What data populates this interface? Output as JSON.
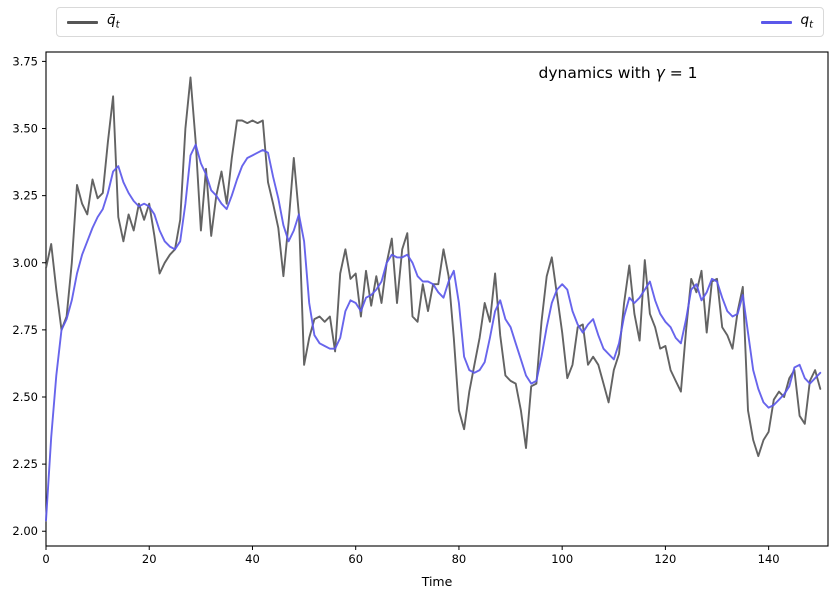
{
  "figure": {
    "background": "#ffffff"
  },
  "chart_data": {
    "type": "line",
    "annotation": "dynamics with γ = 1",
    "xlabel": "Time",
    "ylabel": "",
    "grid": false,
    "xlim": [
      0,
      151.5
    ],
    "ylim": [
      1.945,
      3.785
    ],
    "xticks": {
      "values": [
        0,
        20,
        40,
        60,
        80,
        100,
        120,
        140
      ],
      "labels": [
        "0",
        "20",
        "40",
        "60",
        "80",
        "100",
        "120",
        "140"
      ]
    },
    "yticks": {
      "values": [
        2.0,
        2.25,
        2.5,
        2.75,
        3.0,
        3.25,
        3.5,
        3.75
      ],
      "labels": [
        "2.00",
        "2.25",
        "2.50",
        "2.75",
        "3.00",
        "3.25",
        "3.50",
        "3.75"
      ]
    },
    "legend": {
      "position": "top-expanded",
      "items": [
        {
          "base": "q̄",
          "sub": "t"
        },
        {
          "base": "q",
          "sub": "t"
        }
      ]
    },
    "x": [
      0,
      1,
      2,
      3,
      4,
      5,
      6,
      7,
      8,
      9,
      10,
      11,
      12,
      13,
      14,
      15,
      16,
      17,
      18,
      19,
      20,
      21,
      22,
      23,
      24,
      25,
      26,
      27,
      28,
      29,
      30,
      31,
      32,
      33,
      34,
      35,
      36,
      37,
      38,
      39,
      40,
      41,
      42,
      43,
      44,
      45,
      46,
      47,
      48,
      49,
      50,
      51,
      52,
      53,
      54,
      55,
      56,
      57,
      58,
      59,
      60,
      61,
      62,
      63,
      64,
      65,
      66,
      67,
      68,
      69,
      70,
      71,
      72,
      73,
      74,
      75,
      76,
      77,
      78,
      79,
      80,
      81,
      82,
      83,
      84,
      85,
      86,
      87,
      88,
      89,
      90,
      91,
      92,
      93,
      94,
      95,
      96,
      97,
      98,
      99,
      100,
      101,
      102,
      103,
      104,
      105,
      106,
      107,
      108,
      109,
      110,
      111,
      112,
      113,
      114,
      115,
      116,
      117,
      118,
      119,
      120,
      121,
      122,
      123,
      124,
      125,
      126,
      127,
      128,
      129,
      130,
      131,
      132,
      133,
      134,
      135,
      136,
      137,
      138,
      139,
      140,
      141,
      142,
      143,
      144,
      145,
      146,
      147,
      148,
      149,
      150
    ],
    "series": [
      {
        "name": "q̄_t",
        "color": "#565656",
        "values": [
          2.98,
          3.07,
          2.9,
          2.75,
          2.8,
          3.0,
          3.29,
          3.22,
          3.18,
          3.31,
          3.24,
          3.26,
          3.45,
          3.62,
          3.17,
          3.08,
          3.18,
          3.12,
          3.22,
          3.16,
          3.22,
          3.1,
          2.96,
          3.0,
          3.03,
          3.05,
          3.16,
          3.5,
          3.69,
          3.45,
          3.12,
          3.35,
          3.1,
          3.25,
          3.34,
          3.22,
          3.39,
          3.53,
          3.53,
          3.52,
          3.53,
          3.52,
          3.53,
          3.3,
          3.22,
          3.13,
          2.95,
          3.15,
          3.39,
          3.18,
          2.62,
          2.72,
          2.79,
          2.8,
          2.78,
          2.8,
          2.67,
          2.96,
          3.05,
          2.94,
          2.96,
          2.8,
          2.97,
          2.84,
          2.95,
          2.85,
          3.0,
          3.09,
          2.85,
          3.05,
          3.11,
          2.8,
          2.78,
          2.92,
          2.82,
          2.92,
          2.92,
          3.05,
          2.95,
          2.72,
          2.45,
          2.38,
          2.52,
          2.62,
          2.72,
          2.85,
          2.78,
          2.96,
          2.73,
          2.58,
          2.56,
          2.55,
          2.45,
          2.31,
          2.54,
          2.55,
          2.78,
          2.95,
          3.02,
          2.88,
          2.74,
          2.57,
          2.62,
          2.76,
          2.77,
          2.62,
          2.65,
          2.62,
          2.55,
          2.48,
          2.6,
          2.66,
          2.85,
          2.99,
          2.81,
          2.71,
          3.01,
          2.81,
          2.76,
          2.68,
          2.69,
          2.6,
          2.56,
          2.52,
          2.75,
          2.94,
          2.89,
          2.97,
          2.74,
          2.93,
          2.94,
          2.76,
          2.73,
          2.68,
          2.82,
          2.91,
          2.45,
          2.34,
          2.28,
          2.34,
          2.37,
          2.49,
          2.52,
          2.5,
          2.57,
          2.6,
          2.43,
          2.4,
          2.56,
          2.6,
          2.53
        ]
      },
      {
        "name": "q_t",
        "color": "#5b58ea",
        "values": [
          2.04,
          2.35,
          2.58,
          2.75,
          2.79,
          2.86,
          2.96,
          3.03,
          3.08,
          3.13,
          3.17,
          3.2,
          3.26,
          3.34,
          3.36,
          3.3,
          3.26,
          3.23,
          3.21,
          3.22,
          3.21,
          3.18,
          3.12,
          3.08,
          3.06,
          3.05,
          3.08,
          3.22,
          3.4,
          3.44,
          3.37,
          3.33,
          3.27,
          3.25,
          3.22,
          3.2,
          3.25,
          3.31,
          3.36,
          3.39,
          3.4,
          3.41,
          3.42,
          3.41,
          3.32,
          3.24,
          3.14,
          3.08,
          3.12,
          3.18,
          3.08,
          2.85,
          2.73,
          2.7,
          2.69,
          2.68,
          2.68,
          2.72,
          2.82,
          2.86,
          2.85,
          2.82,
          2.87,
          2.88,
          2.9,
          2.93,
          3.0,
          3.03,
          3.02,
          3.02,
          3.03,
          3.0,
          2.95,
          2.93,
          2.93,
          2.92,
          2.89,
          2.87,
          2.93,
          2.97,
          2.85,
          2.65,
          2.6,
          2.59,
          2.6,
          2.63,
          2.72,
          2.82,
          2.86,
          2.79,
          2.76,
          2.7,
          2.64,
          2.58,
          2.55,
          2.56,
          2.65,
          2.76,
          2.85,
          2.9,
          2.92,
          2.9,
          2.82,
          2.77,
          2.74,
          2.77,
          2.79,
          2.73,
          2.68,
          2.66,
          2.64,
          2.7,
          2.8,
          2.87,
          2.85,
          2.87,
          2.9,
          2.93,
          2.86,
          2.81,
          2.78,
          2.76,
          2.72,
          2.7,
          2.79,
          2.9,
          2.92,
          2.86,
          2.89,
          2.94,
          2.93,
          2.87,
          2.82,
          2.8,
          2.81,
          2.88,
          2.74,
          2.6,
          2.53,
          2.48,
          2.46,
          2.47,
          2.49,
          2.51,
          2.54,
          2.61,
          2.62,
          2.57,
          2.55,
          2.57,
          2.59
        ]
      }
    ]
  }
}
